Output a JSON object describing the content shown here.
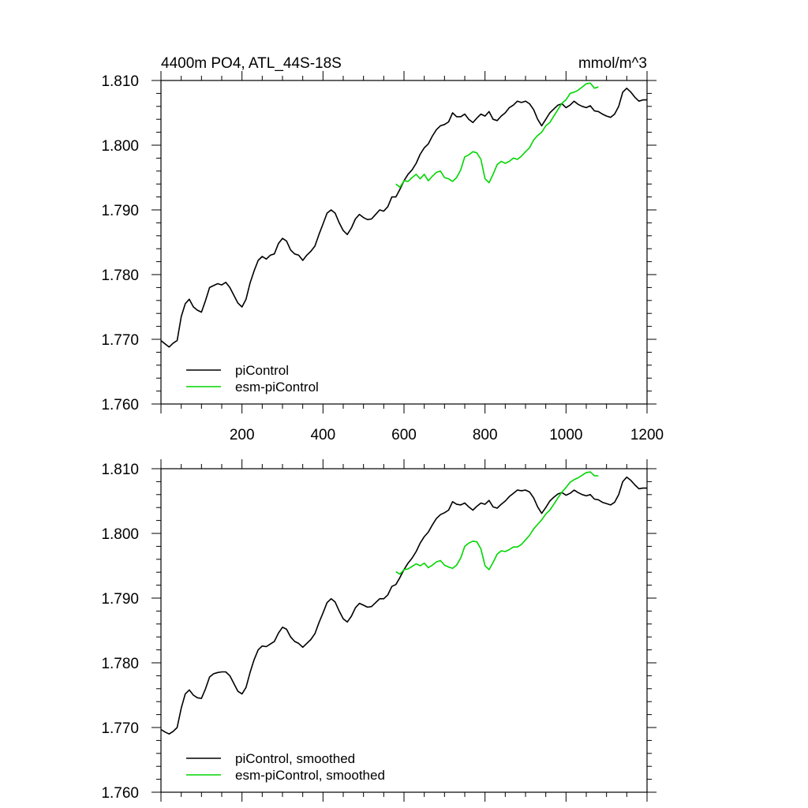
{
  "chart_data": [
    {
      "type": "line",
      "title": "4400m PO4, ATL_44S-18S",
      "units_label": "mmol/m^3",
      "xlim": [
        0,
        1200
      ],
      "ylim": [
        1.76,
        1.81
      ],
      "x_ticks": [
        200,
        400,
        600,
        800,
        1000,
        1200
      ],
      "x_tick_labels": [
        "200",
        "400",
        "600",
        "800",
        "1000",
        "1200"
      ],
      "show_x_tick_labels": true,
      "y_ticks": [
        1.76,
        1.77,
        1.78,
        1.79,
        1.8,
        1.81
      ],
      "y_tick_labels": [
        "1.760",
        "1.770",
        "1.780",
        "1.790",
        "1.800",
        "1.810"
      ],
      "grid": false,
      "legend_position": "bottom-left",
      "series": [
        {
          "name": "piControl",
          "color": "#000000",
          "x": [
            0,
            10,
            20,
            30,
            40,
            50,
            60,
            70,
            80,
            90,
            100,
            110,
            120,
            130,
            140,
            150,
            160,
            170,
            180,
            190,
            200,
            210,
            220,
            230,
            240,
            250,
            260,
            270,
            280,
            290,
            300,
            310,
            320,
            330,
            340,
            350,
            360,
            370,
            380,
            390,
            400,
            410,
            420,
            430,
            440,
            450,
            460,
            470,
            480,
            490,
            500,
            510,
            520,
            530,
            540,
            550,
            560,
            570,
            580,
            590,
            600,
            610,
            620,
            630,
            640,
            650,
            660,
            670,
            680,
            690,
            700,
            710,
            720,
            730,
            740,
            750,
            760,
            770,
            780,
            790,
            800,
            810,
            820,
            830,
            840,
            850,
            860,
            870,
            880,
            890,
            900,
            910,
            920,
            930,
            940,
            950,
            960,
            970,
            980,
            990,
            1000,
            1010,
            1020,
            1030,
            1040,
            1050,
            1060,
            1070,
            1080,
            1090,
            1100,
            1110,
            1120,
            1130,
            1140,
            1150,
            1160,
            1170,
            1180,
            1190,
            1200
          ],
          "y": [
            1.7698,
            1.7693,
            1.7688,
            1.7694,
            1.7698,
            1.7735,
            1.7755,
            1.7762,
            1.775,
            1.7745,
            1.7742,
            1.776,
            1.778,
            1.7783,
            1.7786,
            1.7784,
            1.7788,
            1.778,
            1.7768,
            1.7756,
            1.775,
            1.7762,
            1.7787,
            1.7806,
            1.7822,
            1.7828,
            1.7824,
            1.783,
            1.7832,
            1.7848,
            1.7856,
            1.7852,
            1.7838,
            1.7832,
            1.783,
            1.7822,
            1.783,
            1.7836,
            1.7844,
            1.7862,
            1.7878,
            1.7895,
            1.79,
            1.7895,
            1.788,
            1.7868,
            1.7862,
            1.7872,
            1.7886,
            1.7893,
            1.7888,
            1.7885,
            1.7886,
            1.7893,
            1.79,
            1.7898,
            1.7905,
            1.792,
            1.792,
            1.7932,
            1.7945,
            1.7955,
            1.7962,
            1.7972,
            1.7986,
            1.7996,
            1.8002,
            1.8014,
            1.8024,
            1.803,
            1.8032,
            1.8036,
            1.805,
            1.8044,
            1.8044,
            1.8048,
            1.804,
            1.8035,
            1.8042,
            1.8048,
            1.8045,
            1.8052,
            1.804,
            1.8038,
            1.8045,
            1.805,
            1.8058,
            1.8062,
            1.8068,
            1.8066,
            1.8068,
            1.8064,
            1.8055,
            1.804,
            1.803,
            1.804,
            1.805,
            1.8056,
            1.8062,
            1.8064,
            1.8058,
            1.8062,
            1.8068,
            1.8063,
            1.806,
            1.8058,
            1.8061,
            1.8053,
            1.8052,
            1.8048,
            1.8045,
            1.8043,
            1.8048,
            1.806,
            1.8082,
            1.8088,
            1.8082,
            1.8074,
            1.8068,
            1.807,
            1.807
          ]
        },
        {
          "name": "esm-piControl",
          "color": "#00d600",
          "x": [
            580,
            590,
            600,
            610,
            620,
            630,
            640,
            650,
            660,
            670,
            680,
            690,
            700,
            710,
            720,
            730,
            740,
            750,
            760,
            770,
            780,
            790,
            800,
            810,
            820,
            830,
            840,
            850,
            860,
            870,
            880,
            890,
            900,
            910,
            920,
            930,
            940,
            950,
            960,
            970,
            980,
            990,
            1000,
            1010,
            1020,
            1030,
            1040,
            1050,
            1060,
            1070,
            1080
          ],
          "y": [
            1.794,
            1.7935,
            1.7945,
            1.7944,
            1.795,
            1.7955,
            1.7948,
            1.7955,
            1.7945,
            1.7952,
            1.7958,
            1.796,
            1.795,
            1.7948,
            1.7944,
            1.795,
            1.7962,
            1.7982,
            1.7985,
            1.799,
            1.7988,
            1.7978,
            1.7948,
            1.7942,
            1.7955,
            1.797,
            1.7975,
            1.7972,
            1.7975,
            1.798,
            1.7978,
            1.7983,
            1.799,
            1.7996,
            1.8008,
            1.8015,
            1.802,
            1.803,
            1.8035,
            1.8045,
            1.8055,
            1.8065,
            1.807,
            1.808,
            1.8082,
            1.8085,
            1.809,
            1.8095,
            1.8096,
            1.8088,
            1.809
          ]
        }
      ]
    },
    {
      "type": "line",
      "title": "",
      "units_label": "",
      "xlim": [
        0,
        1200
      ],
      "ylim": [
        1.76,
        1.81
      ],
      "x_ticks": [
        200,
        400,
        600,
        800,
        1000,
        1200
      ],
      "x_tick_labels": [
        "200",
        "400",
        "600",
        "800",
        "1000",
        "1200"
      ],
      "show_x_tick_labels": false,
      "y_ticks": [
        1.76,
        1.77,
        1.78,
        1.79,
        1.8,
        1.81
      ],
      "y_tick_labels": [
        "1.760",
        "1.770",
        "1.780",
        "1.790",
        "1.800",
        "1.810"
      ],
      "grid": false,
      "legend_position": "bottom-left",
      "series": [
        {
          "name": "piControl, smoothed",
          "color": "#000000",
          "x": [
            0,
            10,
            20,
            30,
            40,
            50,
            60,
            70,
            80,
            90,
            100,
            110,
            120,
            130,
            140,
            150,
            160,
            170,
            180,
            190,
            200,
            210,
            220,
            230,
            240,
            250,
            260,
            270,
            280,
            290,
            300,
            310,
            320,
            330,
            340,
            350,
            360,
            370,
            380,
            390,
            400,
            410,
            420,
            430,
            440,
            450,
            460,
            470,
            480,
            490,
            500,
            510,
            520,
            530,
            540,
            550,
            560,
            570,
            580,
            590,
            600,
            610,
            620,
            630,
            640,
            650,
            660,
            670,
            680,
            690,
            700,
            710,
            720,
            730,
            740,
            750,
            760,
            770,
            780,
            790,
            800,
            810,
            820,
            830,
            840,
            850,
            860,
            870,
            880,
            890,
            900,
            910,
            920,
            930,
            940,
            950,
            960,
            970,
            980,
            990,
            1000,
            1010,
            1020,
            1030,
            1040,
            1050,
            1060,
            1070,
            1080,
            1090,
            1100,
            1110,
            1120,
            1130,
            1140,
            1150,
            1160,
            1170,
            1180,
            1190,
            1200
          ],
          "y": [
            1.7697,
            1.7693,
            1.769,
            1.7694,
            1.77,
            1.773,
            1.7752,
            1.7758,
            1.775,
            1.7746,
            1.7745,
            1.776,
            1.7778,
            1.7783,
            1.7785,
            1.7786,
            1.7786,
            1.778,
            1.7768,
            1.7756,
            1.7752,
            1.7762,
            1.7785,
            1.7805,
            1.782,
            1.7826,
            1.7825,
            1.7829,
            1.7833,
            1.7846,
            1.7855,
            1.7852,
            1.784,
            1.7833,
            1.783,
            1.7824,
            1.783,
            1.7836,
            1.7845,
            1.7862,
            1.7877,
            1.7893,
            1.7899,
            1.7894,
            1.788,
            1.7868,
            1.7863,
            1.7872,
            1.7885,
            1.7892,
            1.7889,
            1.7886,
            1.7887,
            1.7893,
            1.7899,
            1.7899,
            1.7905,
            1.7918,
            1.7921,
            1.7932,
            1.7944,
            1.7954,
            1.7962,
            1.7972,
            1.7985,
            1.7995,
            1.8002,
            1.8013,
            1.8023,
            1.8029,
            1.8032,
            1.8036,
            1.8049,
            1.8045,
            1.8044,
            1.8047,
            1.8041,
            1.8036,
            1.8042,
            1.8047,
            1.8045,
            1.8051,
            1.8041,
            1.8039,
            1.8045,
            1.805,
            1.8057,
            1.8062,
            1.8067,
            1.8066,
            1.8067,
            1.8064,
            1.8055,
            1.8041,
            1.8031,
            1.804,
            1.805,
            1.8056,
            1.8061,
            1.8063,
            1.8059,
            1.8062,
            1.8067,
            1.8063,
            1.806,
            1.8058,
            1.806,
            1.8053,
            1.8052,
            1.8048,
            1.8046,
            1.8044,
            1.8048,
            1.806,
            1.808,
            1.8087,
            1.8082,
            1.8075,
            1.8069,
            1.807,
            1.807
          ]
        },
        {
          "name": "esm-piControl, smoothed",
          "color": "#00d600",
          "x": [
            580,
            590,
            600,
            610,
            620,
            630,
            640,
            650,
            660,
            670,
            680,
            690,
            700,
            710,
            720,
            730,
            740,
            750,
            760,
            770,
            780,
            790,
            800,
            810,
            820,
            830,
            840,
            850,
            860,
            870,
            880,
            890,
            900,
            910,
            920,
            930,
            940,
            950,
            960,
            970,
            980,
            990,
            1000,
            1010,
            1020,
            1030,
            1040,
            1050,
            1060,
            1070,
            1080
          ],
          "y": [
            1.7941,
            1.7937,
            1.7944,
            1.7945,
            1.7949,
            1.7953,
            1.795,
            1.7954,
            1.7947,
            1.7951,
            1.7956,
            1.7958,
            1.7951,
            1.7948,
            1.7946,
            1.7951,
            1.7962,
            1.798,
            1.7985,
            1.7988,
            1.7987,
            1.7976,
            1.795,
            1.7944,
            1.7955,
            1.7968,
            1.7973,
            1.7972,
            1.7975,
            1.7979,
            1.7979,
            1.7983,
            1.799,
            1.7997,
            1.8007,
            1.8014,
            1.8021,
            1.803,
            1.8036,
            1.8045,
            1.8055,
            1.8064,
            1.8071,
            1.8079,
            1.8083,
            1.8086,
            1.809,
            1.8094,
            1.8095,
            1.8089,
            1.8089
          ]
        }
      ]
    }
  ]
}
